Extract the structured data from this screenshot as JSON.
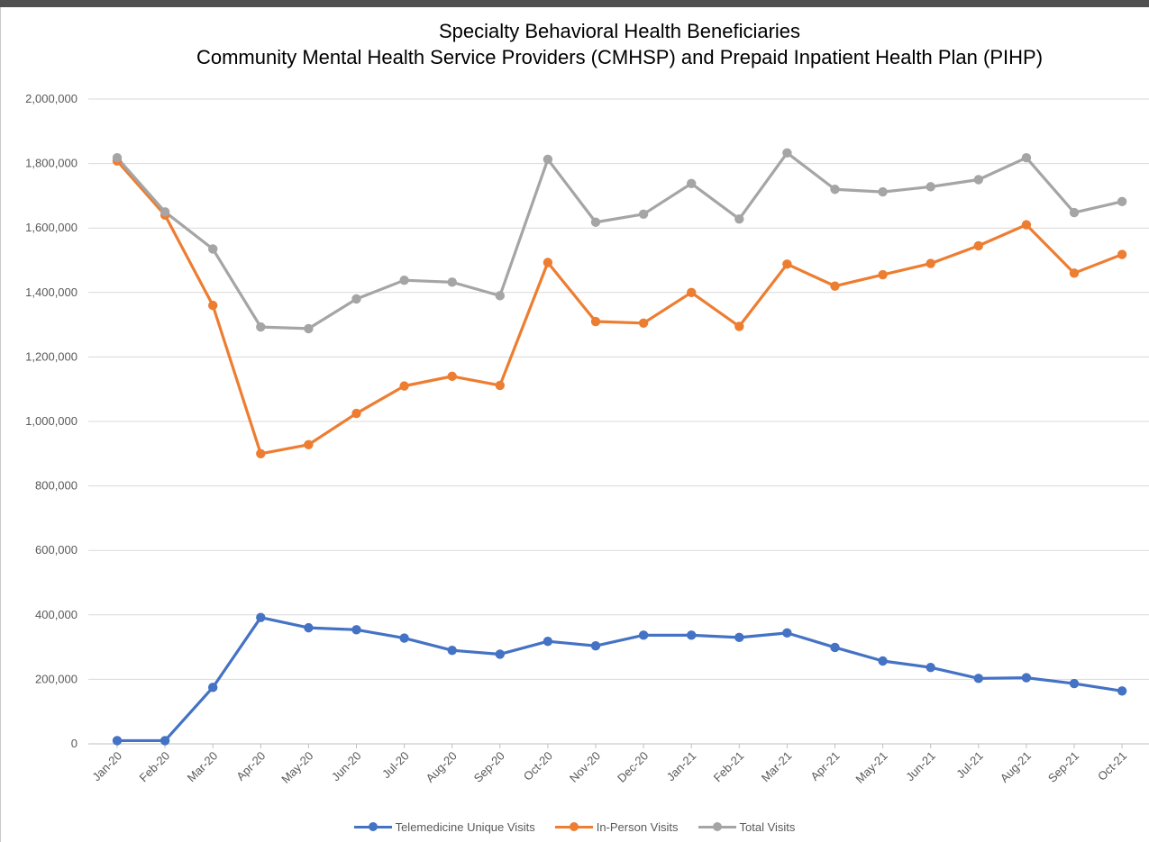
{
  "chart_data": {
    "type": "line",
    "title": "Specialty Behavioral Health Beneficiaries",
    "subtitle": "Community Mental Health Service Providers (CMHSP) and Prepaid Inpatient Health Plan (PIHP)",
    "xlabel": "",
    "ylabel": "",
    "ylim": [
      0,
      2000000
    ],
    "yticks": [
      "0",
      "200,000",
      "400,000",
      "600,000",
      "800,000",
      "1,000,000",
      "1,200,000",
      "1,400,000",
      "1,600,000",
      "1,800,000",
      "2,000,000"
    ],
    "ytick_values": [
      0,
      200000,
      400000,
      600000,
      800000,
      1000000,
      1200000,
      1400000,
      1600000,
      1800000,
      2000000
    ],
    "grid": true,
    "legend_position": "bottom",
    "categories": [
      "Jan-20",
      "Feb-20",
      "Mar-20",
      "Apr-20",
      "May-20",
      "Jun-20",
      "Jul-20",
      "Aug-20",
      "Sep-20",
      "Oct-20",
      "Nov-20",
      "Dec-20",
      "Jan-21",
      "Feb-21",
      "Mar-21",
      "Apr-21",
      "May-21",
      "Jun-21",
      "Jul-21",
      "Aug-21",
      "Sep-21",
      "Oct-21"
    ],
    "series": [
      {
        "name": "Telemedicine Unique Visits",
        "color": "#4472c4",
        "values": [
          10000,
          10000,
          175000,
          392000,
          360000,
          354000,
          328000,
          290000,
          278000,
          318000,
          304000,
          337000,
          337000,
          330000,
          344000,
          299000,
          257000,
          237000,
          203000,
          205000,
          187000,
          164000
        ]
      },
      {
        "name": "In-Person Visits",
        "color": "#ed7d31",
        "values": [
          1808000,
          1640000,
          1360000,
          900000,
          928000,
          1025000,
          1110000,
          1140000,
          1112000,
          1493000,
          1310000,
          1305000,
          1400000,
          1295000,
          1488000,
          1420000,
          1455000,
          1490000,
          1545000,
          1610000,
          1460000,
          1518000
        ]
      },
      {
        "name": "Total Visits",
        "color": "#a5a5a5",
        "values": [
          1818000,
          1650000,
          1535000,
          1293000,
          1288000,
          1380000,
          1438000,
          1432000,
          1390000,
          1813000,
          1618000,
          1643000,
          1738000,
          1628000,
          1833000,
          1720000,
          1712000,
          1728000,
          1750000,
          1818000,
          1648000,
          1682000
        ]
      }
    ]
  }
}
